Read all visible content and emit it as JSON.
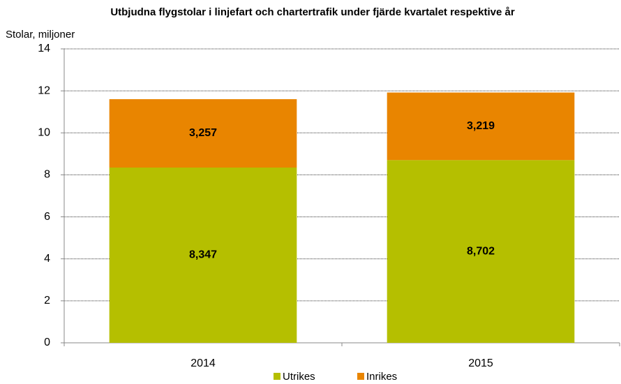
{
  "chart_data": {
    "type": "stacked_bar",
    "title": "Utbjudna flygstolar i linjefart och chartertrafik under fjärde kvartalet respektive år",
    "y_label": "Stolar, miljoner",
    "categories": [
      "2014",
      "2015"
    ],
    "series": [
      {
        "name": "Utrikes",
        "color": "#b5bf00",
        "values": [
          8.347,
          8.702
        ],
        "value_labels": [
          "8,347",
          "8,702"
        ]
      },
      {
        "name": "Inrikes",
        "color": "#e98500",
        "values": [
          3.257,
          3.219
        ],
        "value_labels": [
          "3,257",
          "3,219"
        ]
      }
    ],
    "ylim": [
      0,
      14
    ],
    "yticks": [
      0,
      2,
      4,
      6,
      8,
      10,
      12,
      14
    ],
    "grid": true,
    "legend": "bottom"
  }
}
